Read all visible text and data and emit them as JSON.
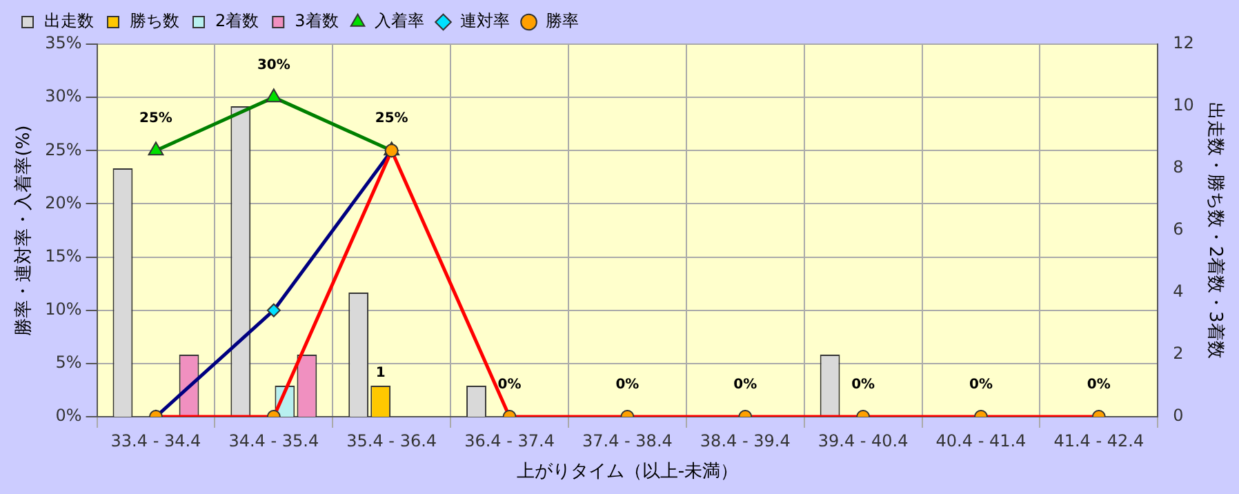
{
  "chart_data": {
    "type": "bar",
    "xlabel": "上がりタイム（以上-未満）",
    "ylabel": "勝率・連対率・入着率(%)",
    "y2label": "出走数・勝ち数・2着数・3着数",
    "categories": [
      "33.4 - 34.4",
      "34.4 - 35.4",
      "35.4 - 36.4",
      "36.4 - 37.4",
      "37.4 - 38.4",
      "38.4 - 39.4",
      "39.4 - 40.4",
      "40.4 - 41.4",
      "41.4 - 42.4"
    ],
    "series": [
      {
        "name": "出走数",
        "type": "bar",
        "axis": "y2",
        "color": "#d9d9d9",
        "values": [
          8,
          10,
          4,
          1,
          0,
          0,
          2,
          0,
          0
        ]
      },
      {
        "name": "勝ち数",
        "type": "bar",
        "axis": "y2",
        "color": "#ffc800",
        "values": [
          0,
          0,
          1,
          0,
          0,
          0,
          0,
          0,
          0
        ],
        "value_labels": [
          null,
          null,
          "1",
          null,
          null,
          null,
          null,
          null,
          null
        ]
      },
      {
        "name": "2着数",
        "type": "bar",
        "axis": "y2",
        "color": "#b8f0f0",
        "values": [
          0,
          1,
          0,
          0,
          0,
          0,
          0,
          0,
          0
        ]
      },
      {
        "name": "3着数",
        "type": "bar",
        "axis": "y2",
        "color": "#f090c0",
        "values": [
          2,
          2,
          0,
          0,
          0,
          0,
          0,
          0,
          0
        ]
      },
      {
        "name": "入着率",
        "type": "line",
        "axis": "y",
        "color": "#008000",
        "marker": "triangle",
        "values": [
          25,
          30,
          25,
          null,
          null,
          null,
          null,
          null,
          null
        ],
        "value_labels": [
          "25%",
          "30%",
          "25%",
          null,
          null,
          null,
          null,
          null,
          null
        ]
      },
      {
        "name": "連対率",
        "type": "line",
        "axis": "y",
        "color": "#000080",
        "marker": "diamond",
        "values": [
          0,
          10,
          25,
          null,
          null,
          null,
          null,
          null,
          null
        ]
      },
      {
        "name": "勝率",
        "type": "line",
        "axis": "y",
        "color": "#ff0000",
        "marker": "circle",
        "values": [
          0,
          0,
          25,
          0,
          0,
          0,
          0,
          0,
          0
        ],
        "value_labels": [
          null,
          null,
          null,
          "0%",
          "0%",
          "0%",
          "0%",
          "0%",
          "0%"
        ]
      }
    ],
    "ylim": [
      0,
      35
    ],
    "yticks": [
      {
        "value": 0,
        "label": "0%"
      },
      {
        "value": 5,
        "label": "5%"
      },
      {
        "value": 10,
        "label": "10%"
      },
      {
        "value": 15,
        "label": "15%"
      },
      {
        "value": 20,
        "label": "20%"
      },
      {
        "value": 25,
        "label": "25%"
      },
      {
        "value": 30,
        "label": "30%"
      },
      {
        "value": 35,
        "label": "35%"
      }
    ],
    "y2lim": [
      0,
      12
    ],
    "y2ticks": [
      0,
      2,
      4,
      6,
      8,
      10,
      12
    ],
    "grid": true,
    "legend": "top left"
  }
}
